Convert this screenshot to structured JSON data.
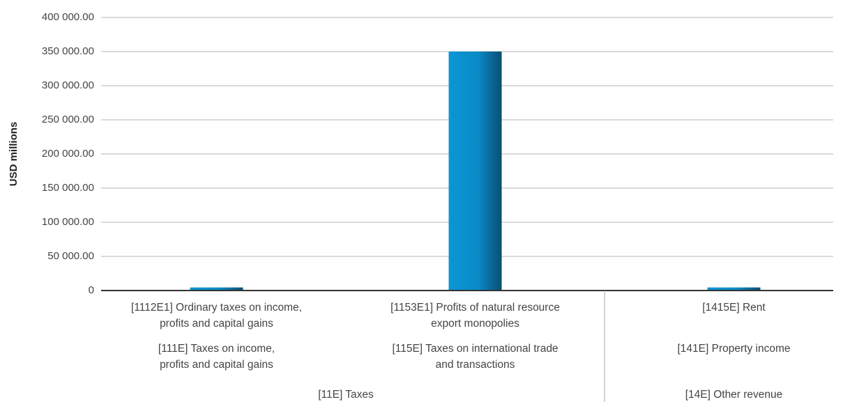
{
  "chart_data": {
    "type": "bar",
    "y_label": "USD millions",
    "categories": [
      "[1112E1] Ordinary taxes on income,\nprofits and capital gains",
      "[1153E1] Profits of natural resource\nexport monopolies",
      "[1415E] Rent"
    ],
    "category_level2": [
      "[111E] Taxes on income,\nprofits and capital gains",
      "[115E] Taxes on international trade\nand transactions",
      "[141E] Property income"
    ],
    "category_level3": [
      "[11E] Taxes",
      null,
      "[14E] Other revenue"
    ],
    "values": [
      4500,
      350000,
      4500
    ],
    "color": "#0b93d3",
    "ylim": [
      0,
      400000
    ],
    "yticks": [
      0,
      {
        "value": 50000,
        "label": "50 000.00"
      },
      {
        "value": 100000,
        "label": "100 000.00"
      },
      {
        "value": 150000,
        "label": "150 000.00"
      },
      {
        "value": 200000,
        "label": "200 000.00"
      },
      {
        "value": 250000,
        "label": "250 000.00"
      },
      {
        "value": 300000,
        "label": "300 000.00"
      },
      {
        "value": 350000,
        "label": "350 000.00"
      },
      {
        "value": 400000,
        "label": "400 000.00"
      }
    ],
    "grid": true
  }
}
